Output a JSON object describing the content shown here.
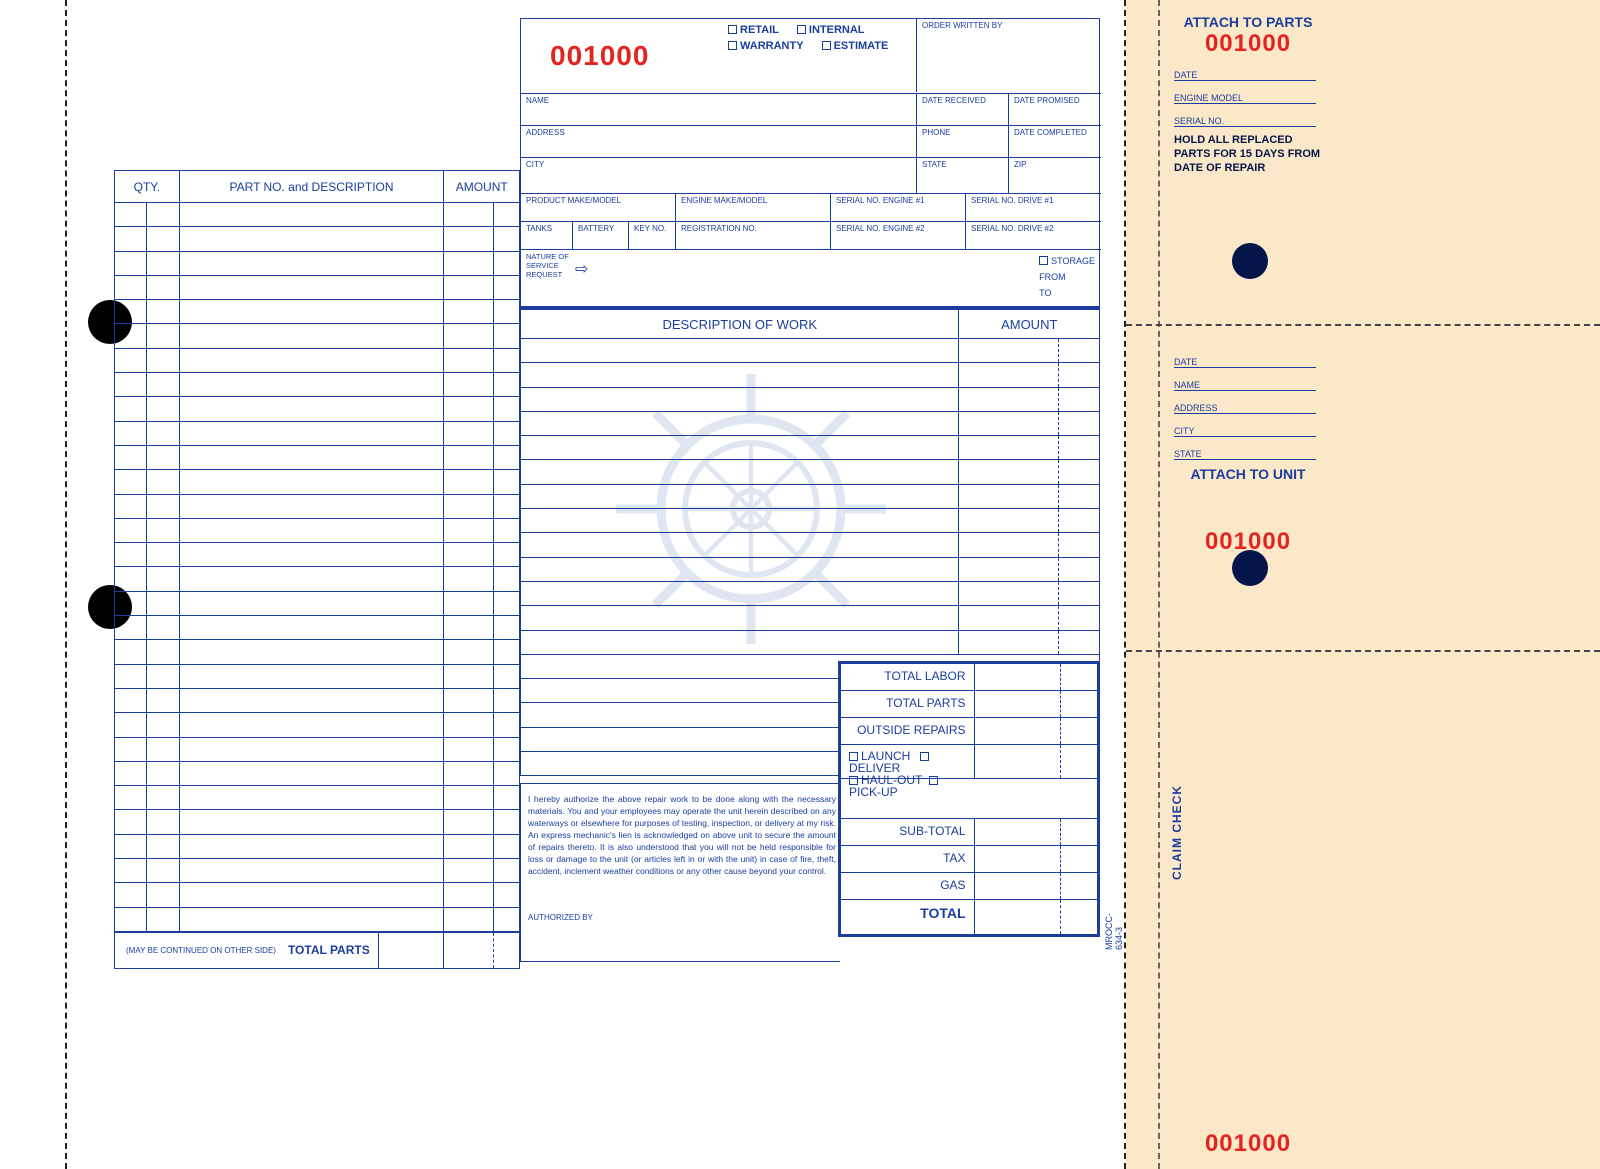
{
  "form": {
    "order_number": "001000",
    "order_types": [
      "RETAIL",
      "INTERNAL",
      "WARRANTY",
      "ESTIMATE"
    ],
    "order_written_by": "ORDER WRITTEN BY",
    "fields": {
      "name": "NAME",
      "date_received": "DATE RECEIVED",
      "date_promised": "DATE PROMISED",
      "address": "ADDRESS",
      "phone": "PHONE",
      "date_completed": "DATE COMPLETED",
      "city": "CITY",
      "state": "STATE",
      "zip": "ZIP",
      "product": "PRODUCT MAKE/MODEL",
      "engine": "ENGINE MAKE/MODEL",
      "serial_e1": "SERIAL NO. ENGINE #1",
      "serial_d1": "SERIAL NO. DRIVE #1",
      "tanks": "TANKS",
      "battery": "BATTERY",
      "key": "KEY NO.",
      "reg": "REGISTRATION NO.",
      "serial_e2": "SERIAL NO. ENGINE #2",
      "serial_d2": "SERIAL NO. DRIVE #2",
      "nature": "NATURE OF\nSERVICE\nREQUEST",
      "storage": "STORAGE",
      "from": "FROM",
      "to": "TO"
    },
    "parts": {
      "qty": "QTY.",
      "desc": "PART NO. and DESCRIPTION",
      "amount": "AMOUNT",
      "continued": "(MAY BE CONTINUED ON OTHER SIDE)",
      "total": "TOTAL PARTS",
      "rows": 30
    },
    "work": {
      "desc": "DESCRIPTION OF WORK",
      "amount": "AMOUNT",
      "rows": 13
    },
    "totals": {
      "labor": "TOTAL LABOR",
      "parts": "TOTAL PARTS",
      "outside": "OUTSIDE REPAIRS",
      "opts": [
        "LAUNCH",
        "DELIVER",
        "HAUL-OUT",
        "PICK-UP"
      ],
      "subtotal": "SUB-TOTAL",
      "tax": "TAX",
      "gas": "GAS",
      "total": "TOTAL"
    },
    "auth_text": "I hereby authorize the above repair work to be done along with the necessary materials. You and your employees may operate the unit herein described on any waterways or elsewhere for purposes of testing, inspection, or delivery at my risk. An express mechanic's lien is acknowledged on above unit to secure the amount of repairs thereto. It is also understood that you will not be held responsible for loss or damage to the unit (or articles left in or with the unit) in case of fire, theft, accident, inclement weather conditions or any other cause beyond your control.",
    "auth_by": "AUTHORIZED BY",
    "form_code": "MROCC-634-3"
  },
  "stubs": {
    "parts": {
      "title": "ATTACH TO PARTS",
      "number": "001000",
      "fields": [
        "DATE",
        "ENGINE MODEL",
        "SERIAL NO."
      ],
      "hold": "HOLD ALL REPLACED PARTS FOR 15 DAYS FROM DATE OF REPAIR"
    },
    "unit": {
      "fields": [
        "DATE",
        "NAME",
        "ADDRESS",
        "CITY",
        "STATE"
      ],
      "title": "ATTACH TO UNIT",
      "number": "001000"
    },
    "claim": {
      "title": "CLAIM CHECK",
      "number": "001000"
    }
  },
  "colors": {
    "blue": "#1a3d9e",
    "red": "#e52321",
    "stub_bg": "#fbe8c8",
    "dark_navy": "#04154a",
    "white": "#ffffff"
  }
}
